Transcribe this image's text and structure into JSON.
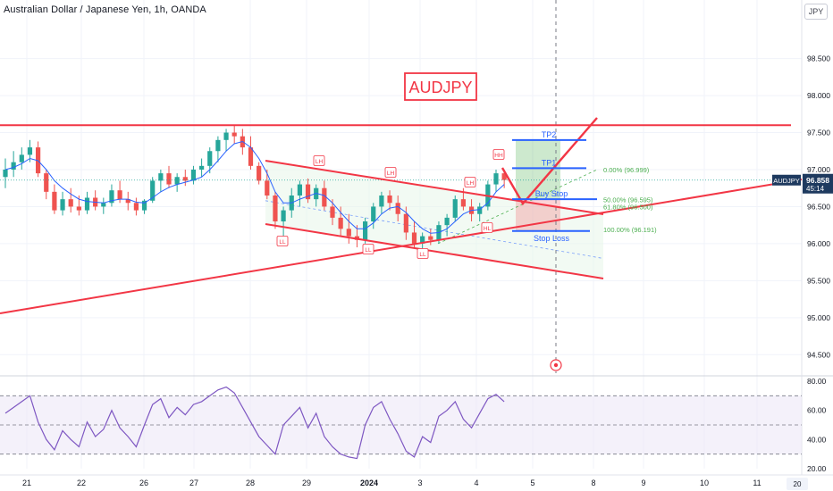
{
  "header": {
    "title": "Australian Dollar / Japanese Yen, 1h, OANDA",
    "currency_button": "JPY",
    "go_to_realtime_label": "20"
  },
  "colors": {
    "up": "#26a69a",
    "down": "#ef5350",
    "drawing_red": "#f23645",
    "drawing_blue": "#2962ff",
    "ma_line": "#2962ff",
    "fib": "#4caf50",
    "rsi_line": "#7e57c2",
    "rsi_band": "#ede7f6",
    "price_tag_bg": "#1e3a5f"
  },
  "chart_data": [
    {
      "type": "candlestick",
      "title": "",
      "symbol": "AUDJPY",
      "price_scale": {
        "range": [
          94.25,
          99.05
        ],
        "ticks": [
          "98.500",
          "98.000",
          "97.500",
          "97.000",
          "96.500",
          "96.000",
          "95.500",
          "95.000",
          "94.500"
        ]
      },
      "time_axis": {
        "ticks": [
          "21",
          "22",
          "26",
          "27",
          "28",
          "29",
          "2024",
          "3",
          "4",
          "5",
          "8",
          "9",
          "10",
          "11"
        ]
      },
      "last_price": {
        "symbol": "AUDJPY",
        "value": "96.858",
        "countdown": "45:14"
      },
      "annotation_title": "AUDJPY",
      "swing_labels": [
        "LL",
        "LH",
        "LH",
        "LL",
        "LL",
        "LH",
        "HL",
        "HH"
      ],
      "trade_levels": [
        {
          "label": "TP2",
          "price": 97.4
        },
        {
          "label": "TP1",
          "price": 97.02
        },
        {
          "label": "Buy Stop",
          "price": 96.6
        },
        {
          "label": "Stop Loss",
          "price": 96.17
        }
      ],
      "fibonacci": [
        {
          "label": "0.00% (96.999)",
          "price": 96.999
        },
        {
          "label": "50.00% (96.595)",
          "price": 96.595
        },
        {
          "label": "61.80% (96.500)",
          "price": 96.5
        },
        {
          "label": "100.00% (96.191)",
          "price": 96.191
        }
      ],
      "horizontal_resistance": 97.6,
      "candles_ohlc": [
        [
          96.9,
          97.15,
          96.75,
          97.0
        ],
        [
          97.0,
          97.25,
          96.9,
          97.1
        ],
        [
          97.1,
          97.3,
          97.0,
          97.2
        ],
        [
          97.2,
          97.4,
          97.1,
          97.3
        ],
        [
          97.3,
          97.38,
          96.9,
          96.95
        ],
        [
          96.95,
          97.0,
          96.6,
          96.7
        ],
        [
          96.7,
          96.8,
          96.4,
          96.45
        ],
        [
          96.45,
          96.7,
          96.38,
          96.6
        ],
        [
          96.6,
          96.75,
          96.42,
          96.5
        ],
        [
          96.5,
          96.65,
          96.38,
          96.45
        ],
        [
          96.45,
          96.7,
          96.4,
          96.62
        ],
        [
          96.62,
          96.72,
          96.45,
          96.5
        ],
        [
          96.5,
          96.62,
          96.4,
          96.55
        ],
        [
          96.55,
          96.8,
          96.5,
          96.72
        ],
        [
          96.72,
          96.85,
          96.55,
          96.6
        ],
        [
          96.6,
          96.7,
          96.45,
          96.55
        ],
        [
          96.55,
          96.62,
          96.38,
          96.45
        ],
        [
          96.45,
          96.6,
          96.4,
          96.58
        ],
        [
          96.58,
          96.9,
          96.55,
          96.85
        ],
        [
          96.85,
          97.0,
          96.7,
          96.95
        ],
        [
          96.95,
          97.05,
          96.75,
          96.8
        ],
        [
          96.8,
          96.95,
          96.7,
          96.9
        ],
        [
          96.9,
          97.0,
          96.78,
          96.85
        ],
        [
          96.85,
          97.05,
          96.8,
          97.0
        ],
        [
          97.0,
          97.15,
          96.9,
          97.05
        ],
        [
          97.05,
          97.3,
          96.95,
          97.25
        ],
        [
          97.25,
          97.45,
          97.1,
          97.4
        ],
        [
          97.4,
          97.55,
          97.25,
          97.5
        ],
        [
          97.5,
          97.6,
          97.35,
          97.45
        ],
        [
          97.45,
          97.55,
          97.2,
          97.3
        ],
        [
          97.3,
          97.45,
          97.0,
          97.05
        ],
        [
          97.05,
          97.1,
          96.8,
          96.85
        ],
        [
          96.85,
          97.0,
          96.6,
          96.65
        ],
        [
          96.65,
          96.7,
          96.2,
          96.3
        ],
        [
          96.3,
          96.5,
          96.1,
          96.45
        ],
        [
          96.45,
          96.75,
          96.35,
          96.65
        ],
        [
          96.65,
          96.85,
          96.5,
          96.8
        ],
        [
          96.8,
          96.88,
          96.55,
          96.6
        ],
        [
          96.6,
          96.8,
          96.5,
          96.75
        ],
        [
          96.75,
          96.85,
          96.45,
          96.5
        ],
        [
          96.5,
          96.6,
          96.25,
          96.35
        ],
        [
          96.35,
          96.5,
          96.1,
          96.2
        ],
        [
          96.2,
          96.4,
          96.0,
          96.1
        ],
        [
          96.1,
          96.25,
          95.95,
          96.05
        ],
        [
          96.05,
          96.35,
          96.0,
          96.3
        ],
        [
          96.3,
          96.55,
          96.2,
          96.5
        ],
        [
          96.5,
          96.7,
          96.4,
          96.65
        ],
        [
          96.65,
          96.72,
          96.45,
          96.55
        ],
        [
          96.55,
          96.65,
          96.3,
          96.4
        ],
        [
          96.4,
          96.5,
          96.05,
          96.15
        ],
        [
          96.15,
          96.3,
          95.95,
          96.0
        ],
        [
          96.0,
          96.15,
          95.9,
          96.1
        ],
        [
          96.1,
          96.2,
          95.98,
          96.05
        ],
        [
          96.05,
          96.3,
          96.0,
          96.25
        ],
        [
          96.25,
          96.4,
          96.1,
          96.35
        ],
        [
          96.35,
          96.65,
          96.3,
          96.6
        ],
        [
          96.6,
          96.75,
          96.45,
          96.5
        ],
        [
          96.5,
          96.6,
          96.3,
          96.4
        ],
        [
          96.4,
          96.55,
          96.3,
          96.5
        ],
        [
          96.5,
          96.85,
          96.45,
          96.8
        ],
        [
          96.8,
          97.0,
          96.7,
          96.95
        ],
        [
          96.95,
          97.0,
          96.75,
          96.86
        ]
      ],
      "moving_average": [
        97.0,
        97.03,
        97.08,
        97.15,
        97.12,
        97.0,
        96.85,
        96.75,
        96.67,
        96.6,
        96.57,
        96.56,
        96.55,
        96.58,
        96.6,
        96.6,
        96.56,
        96.55,
        96.62,
        96.7,
        96.76,
        96.8,
        96.83,
        96.86,
        96.9,
        97.0,
        97.12,
        97.25,
        97.35,
        97.38,
        97.3,
        97.15,
        96.95,
        96.7,
        96.55,
        96.55,
        96.6,
        96.64,
        96.68,
        96.65,
        96.55,
        96.42,
        96.3,
        96.2,
        96.2,
        96.28,
        96.4,
        96.48,
        96.5,
        96.42,
        96.3,
        96.2,
        96.14,
        96.15,
        96.2,
        96.3,
        96.4,
        96.45,
        96.46,
        96.55,
        96.7,
        96.8
      ]
    },
    {
      "type": "line",
      "title": "",
      "name": "RSI",
      "ylim": [
        20,
        80
      ],
      "ticks": [
        "80.00",
        "60.00",
        "40.00",
        "20.00"
      ],
      "levels": [
        70,
        50,
        30
      ],
      "values": [
        58,
        62,
        66,
        70,
        52,
        40,
        33,
        46,
        40,
        35,
        52,
        42,
        47,
        60,
        48,
        42,
        35,
        50,
        64,
        68,
        55,
        62,
        57,
        64,
        66,
        70,
        74,
        76,
        72,
        62,
        52,
        42,
        36,
        30,
        50,
        56,
        62,
        48,
        58,
        42,
        35,
        30,
        28,
        27,
        50,
        62,
        66,
        54,
        44,
        32,
        28,
        42,
        38,
        56,
        60,
        66,
        54,
        48,
        58,
        68,
        71,
        66
      ]
    }
  ]
}
